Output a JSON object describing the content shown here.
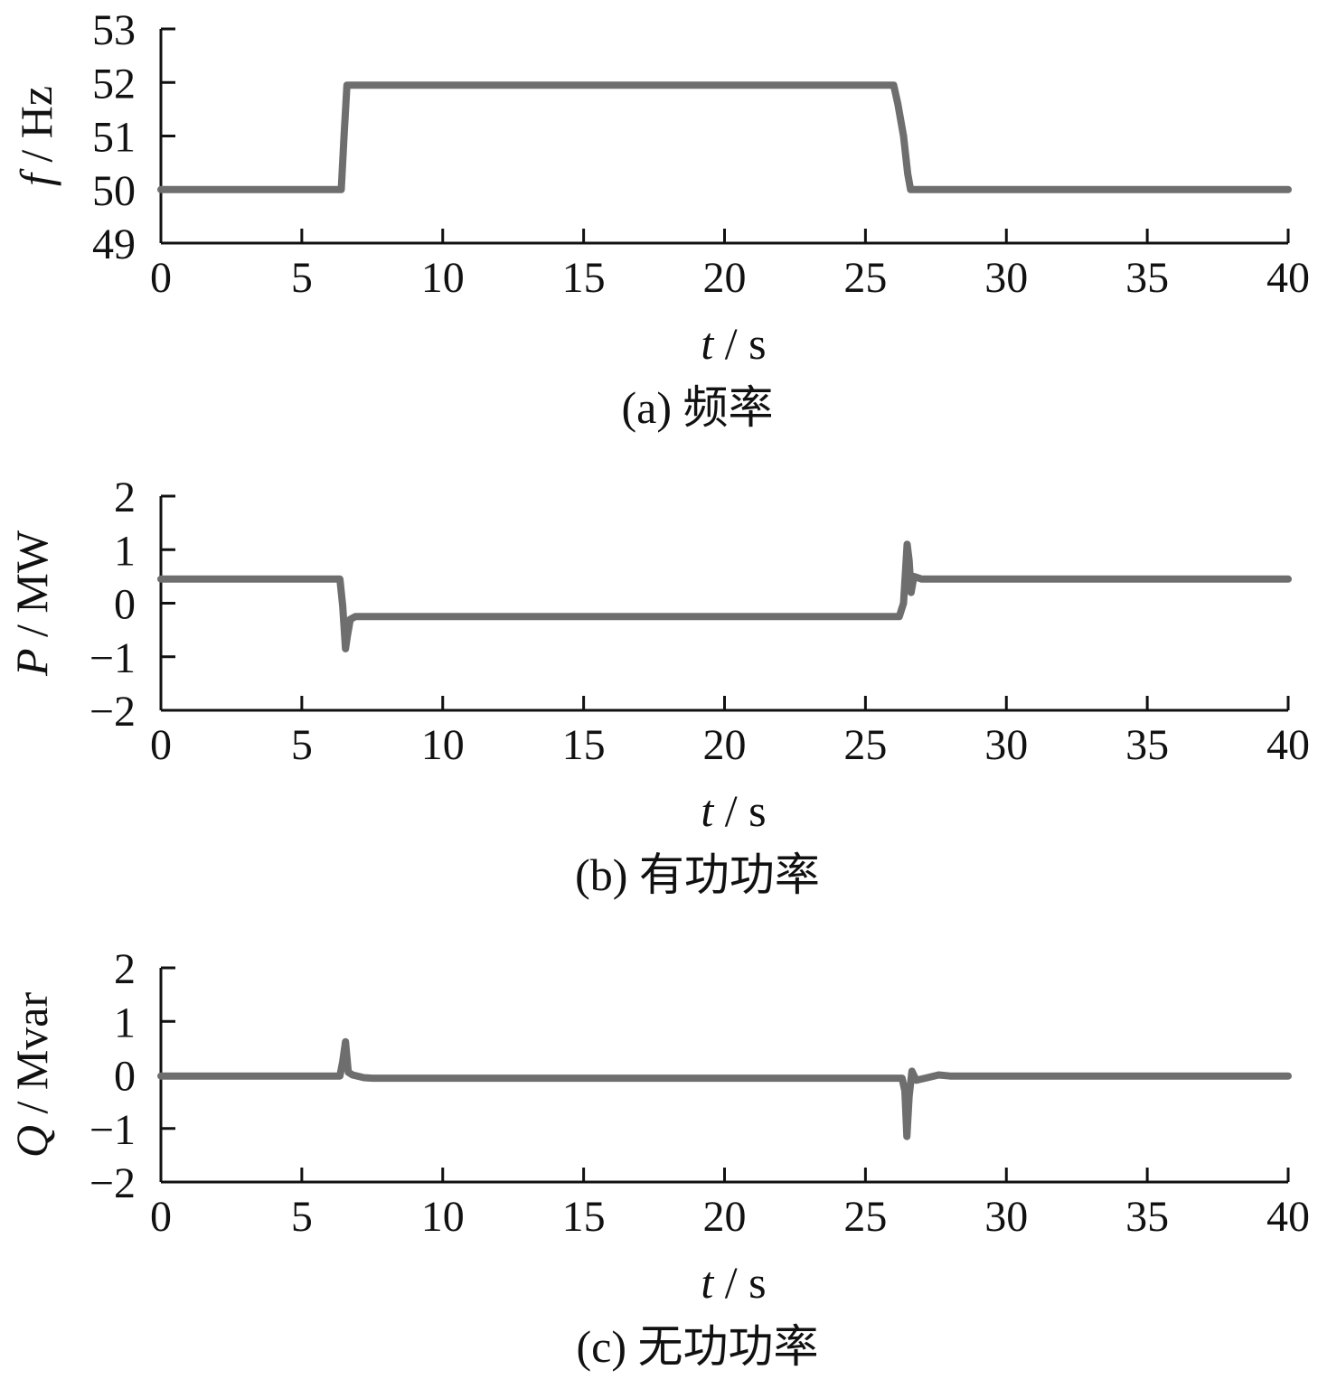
{
  "colors": {
    "axis": "#111111",
    "trace": "#6e6e6e"
  },
  "chart_data": [
    {
      "type": "line",
      "caption": "(a)  频率",
      "xlabel_var": "t",
      "xlabel_unit": " / s",
      "ylabel_var": "f",
      "ylabel_unit": " / Hz",
      "xlim": [
        0,
        40
      ],
      "ylim": [
        49,
        53
      ],
      "xticks": [
        0,
        5,
        10,
        15,
        20,
        25,
        30,
        35,
        40
      ],
      "yticks": [
        49,
        50,
        51,
        52,
        53
      ],
      "grid": false,
      "series": [
        {
          "x": [
            0,
            6.4,
            6.5,
            6.6,
            26.0,
            26.15,
            26.35,
            26.5,
            26.6,
            40
          ],
          "y": [
            50,
            50,
            51.0,
            51.95,
            51.95,
            51.6,
            51.0,
            50.3,
            50,
            50
          ]
        }
      ]
    },
    {
      "type": "line",
      "caption": "(b)  有功功率",
      "xlabel_var": "t",
      "xlabel_unit": " / s",
      "ylabel_var": "P",
      "ylabel_unit": " / MW",
      "xlim": [
        0,
        40
      ],
      "ylim": [
        -2,
        2
      ],
      "xticks": [
        0,
        5,
        10,
        15,
        20,
        25,
        30,
        35,
        40
      ],
      "yticks": [
        -2,
        -1,
        0,
        1,
        2
      ],
      "grid": false,
      "series": [
        {
          "x": [
            0,
            6.35,
            6.45,
            6.55,
            6.62,
            6.72,
            6.9,
            26.2,
            26.35,
            26.48,
            26.55,
            26.62,
            26.72,
            27.0,
            40
          ],
          "y": [
            0.45,
            0.45,
            -0.05,
            -0.85,
            -0.6,
            -0.3,
            -0.25,
            -0.25,
            0.0,
            1.1,
            0.8,
            0.2,
            0.5,
            0.45,
            0.45
          ]
        }
      ]
    },
    {
      "type": "line",
      "caption": "(c)  无功功率",
      "xlabel_var": "t",
      "xlabel_unit": " / s",
      "ylabel_var": "Q",
      "ylabel_unit": " / Mvar",
      "xlim": [
        0,
        40
      ],
      "ylim": [
        -2,
        2
      ],
      "xticks": [
        0,
        5,
        10,
        15,
        20,
        25,
        30,
        35,
        40
      ],
      "yticks": [
        -2,
        -1,
        0,
        1,
        2
      ],
      "grid": false,
      "series": [
        {
          "x": [
            0,
            6.35,
            6.45,
            6.55,
            6.65,
            6.8,
            7.2,
            7.5,
            26.3,
            26.4,
            26.47,
            26.55,
            26.65,
            26.8,
            27.2,
            27.6,
            28.0,
            40
          ],
          "y": [
            -0.02,
            -0.02,
            0.25,
            0.62,
            0.05,
            0.0,
            -0.05,
            -0.06,
            -0.06,
            -0.3,
            -1.15,
            -0.4,
            0.07,
            -0.1,
            -0.05,
            0.0,
            -0.02,
            -0.02
          ]
        }
      ]
    }
  ]
}
